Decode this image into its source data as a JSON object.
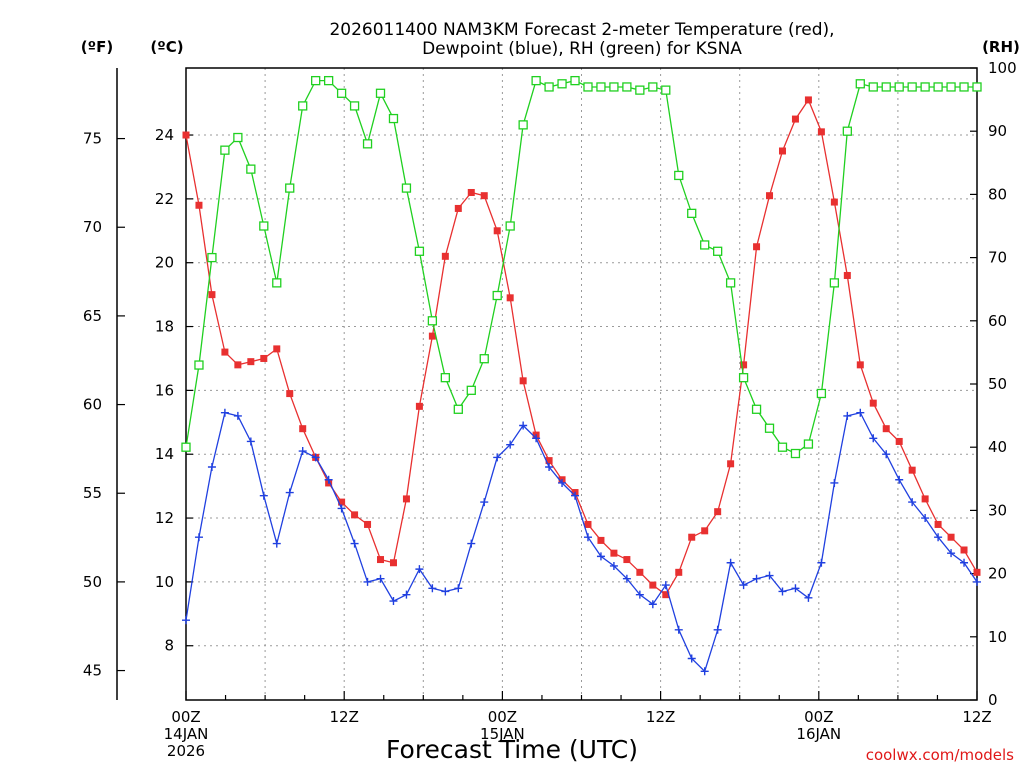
{
  "chart_data": {
    "type": "line",
    "title_lines": [
      "2026011400 NAM3KM Forecast 2-meter Temperature (red),",
      "Dewpoint (blue), RH (green) for KSNA"
    ],
    "xlabel": "Forecast Time (UTC)",
    "credit": "coolwx.com/models",
    "x_range_hours": [
      0,
      60
    ],
    "x_ticks": [
      {
        "hour": 0,
        "lines": [
          "00Z",
          "14JAN",
          "2026"
        ]
      },
      {
        "hour": 12,
        "lines": [
          "12Z"
        ]
      },
      {
        "hour": 24,
        "lines": [
          "00Z",
          "15JAN"
        ]
      },
      {
        "hour": 36,
        "lines": [
          "12Z"
        ]
      },
      {
        "hour": 48,
        "lines": [
          "00Z",
          "16JAN"
        ]
      },
      {
        "hour": 60,
        "lines": [
          "12Z"
        ]
      }
    ],
    "axes": {
      "celsius": {
        "label": "(ºC)",
        "range": [
          6.3,
          26.1
        ],
        "ticks": [
          8,
          10,
          12,
          14,
          16,
          18,
          20,
          22,
          24
        ]
      },
      "fahrenheit": {
        "label": "(ºF)",
        "ticks": [
          45,
          50,
          55,
          60,
          65,
          70,
          75
        ]
      },
      "rh": {
        "label": "(RH)",
        "range": [
          0,
          100
        ],
        "ticks": [
          0,
          10,
          20,
          30,
          40,
          50,
          60,
          70,
          80,
          90,
          100
        ]
      }
    },
    "series": [
      {
        "name": "Temperature",
        "unit": "C",
        "color": "#e83030",
        "marker": "filled-square",
        "values": [
          24.0,
          21.8,
          19.0,
          17.2,
          16.8,
          16.9,
          17.0,
          17.3,
          15.9,
          14.8,
          13.9,
          13.1,
          12.5,
          12.1,
          11.8,
          10.7,
          10.6,
          12.6,
          15.5,
          17.7,
          20.2,
          21.7,
          22.2,
          22.1,
          21.0,
          18.9,
          16.3,
          14.6,
          13.8,
          13.2,
          12.8,
          11.8,
          11.3,
          10.9,
          10.7,
          10.3,
          9.9,
          9.6,
          10.3,
          11.4,
          11.6,
          12.2,
          13.7,
          16.8,
          20.5,
          22.1,
          23.5,
          24.5,
          25.1,
          24.1,
          21.9,
          19.6,
          16.8,
          15.6,
          14.8,
          14.4,
          13.5,
          12.6,
          11.8,
          11.4,
          11.0,
          10.3
        ]
      },
      {
        "name": "Dewpoint",
        "unit": "C",
        "color": "#2040e0",
        "marker": "plus",
        "values": [
          8.8,
          11.4,
          13.6,
          15.3,
          15.2,
          14.4,
          12.7,
          11.2,
          12.8,
          14.1,
          13.9,
          13.2,
          12.3,
          11.2,
          10.0,
          10.1,
          9.4,
          9.6,
          10.4,
          9.8,
          9.7,
          9.8,
          11.2,
          12.5,
          13.9,
          14.3,
          14.9,
          14.5,
          13.6,
          13.1,
          12.7,
          11.4,
          10.8,
          10.5,
          10.1,
          9.6,
          9.3,
          9.9,
          8.5,
          7.6,
          7.2,
          8.5,
          10.6,
          9.9,
          10.1,
          10.2,
          9.7,
          9.8,
          9.5,
          10.6,
          13.1,
          15.2,
          15.3,
          14.5,
          14.0,
          13.2,
          12.5,
          12.0,
          11.4,
          10.9,
          10.6,
          10.0
        ]
      },
      {
        "name": "RH",
        "unit": "%",
        "color": "#20d020",
        "marker": "open-square",
        "values": [
          40,
          53,
          70,
          87,
          89,
          84,
          75,
          66,
          81,
          94,
          98,
          98,
          96,
          94,
          88,
          96,
          92,
          81,
          71,
          60,
          51,
          46,
          49,
          54,
          64,
          75,
          91,
          98,
          97,
          97.5,
          98,
          97,
          97,
          97,
          97,
          96.5,
          97,
          96.5,
          83,
          77,
          72,
          71,
          66,
          51,
          46,
          43,
          40,
          39,
          40.5,
          48.5,
          66,
          90,
          97.5,
          97,
          97,
          97,
          97,
          97,
          97,
          97,
          97,
          97
        ]
      }
    ]
  }
}
